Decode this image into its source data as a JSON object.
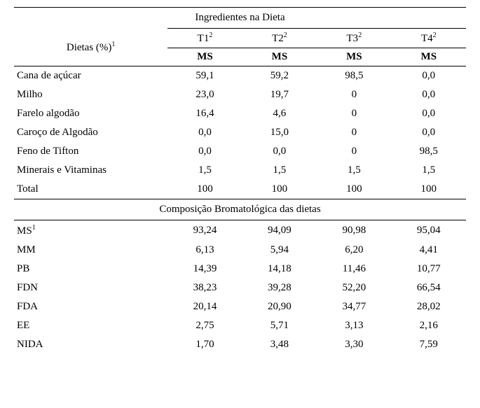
{
  "section1": {
    "title": "Ingredientes na Dieta",
    "rowHeader": "Dietas (%)",
    "rowHeaderSup": "1",
    "colHeaders": [
      {
        "label": "T1",
        "sup": "2"
      },
      {
        "label": "T2",
        "sup": "2"
      },
      {
        "label": "T3",
        "sup": "2"
      },
      {
        "label": "T4",
        "sup": "2"
      }
    ],
    "subHeader": "MS",
    "rows": [
      {
        "label": "Cana de açúcar",
        "values": [
          "59,1",
          "59,2",
          "98,5",
          "0,0"
        ]
      },
      {
        "label": "Milho",
        "values": [
          "23,0",
          "19,7",
          "0",
          "0,0"
        ]
      },
      {
        "label": "Farelo algodão",
        "values": [
          "16,4",
          "4,6",
          "0",
          "0,0"
        ]
      },
      {
        "label": "Caroço de Algodão",
        "values": [
          "0,0",
          "15,0",
          "0",
          "0,0"
        ]
      },
      {
        "label": "Feno de Tifton",
        "values": [
          "0,0",
          "0,0",
          "0",
          "98,5"
        ]
      },
      {
        "label": "Minerais e Vitaminas",
        "values": [
          "1,5",
          "1,5",
          "1,5",
          "1,5"
        ]
      },
      {
        "label": "Total",
        "values": [
          "100",
          "100",
          "100",
          "100"
        ]
      }
    ]
  },
  "section2": {
    "title": "Composição Bromatológica das dietas",
    "rows": [
      {
        "label": "MS",
        "sup": "1",
        "values": [
          "93,24",
          "94,09",
          "90,98",
          "95,04"
        ]
      },
      {
        "label": "MM",
        "values": [
          "6,13",
          "5,94",
          "6,20",
          "4,41"
        ]
      },
      {
        "label": "PB",
        "values": [
          "14,39",
          "14,18",
          "11,46",
          "10,77"
        ]
      },
      {
        "label": "FDN",
        "values": [
          "38,23",
          "39,28",
          "52,20",
          "66,54"
        ]
      },
      {
        "label": "FDA",
        "values": [
          "20,14",
          "20,90",
          "34,77",
          "28,02"
        ]
      },
      {
        "label": "EE",
        "values": [
          "2,75",
          "5,71",
          "3,13",
          "2,16"
        ]
      },
      {
        "label": "NIDA",
        "values": [
          "1,70",
          "3,48",
          "3,30",
          "7,59"
        ]
      }
    ]
  }
}
